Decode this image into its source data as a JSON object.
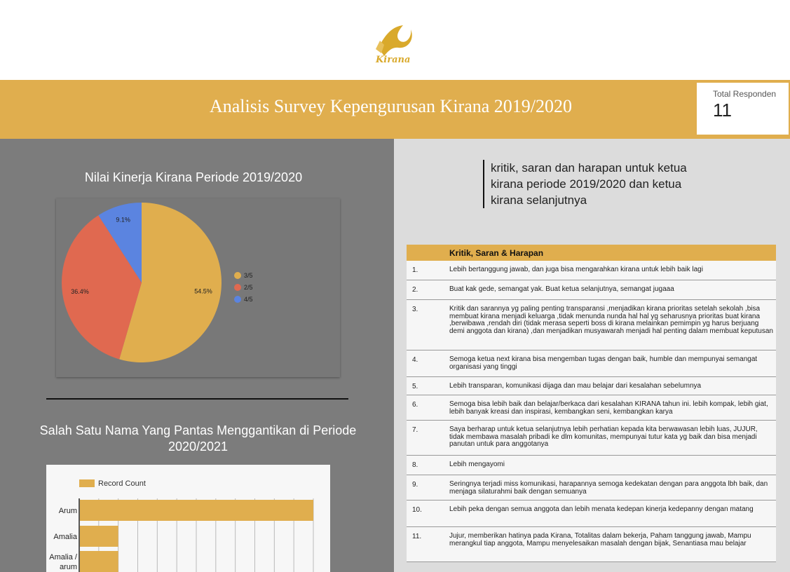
{
  "logo": {
    "text": "Kirana",
    "color": "#d9a92b"
  },
  "header": {
    "title": "Analisis Survey Kepengurusan Kirana 2019/2020",
    "total_label": "Total Responden",
    "total_value": "11",
    "accent": "#e0ae4e"
  },
  "pie_section": {
    "title": "Nilai Kinerja Kirana Periode 2019/2020"
  },
  "bar_section": {
    "title": "Salah Satu Nama Yang Pantas Menggantikan di Periode 2020/2021"
  },
  "question": {
    "text": "kritik, saran dan harapan untuk ketua kirana periode 2019/2020 dan ketua kirana selanjutnya"
  },
  "chart_data": [
    {
      "type": "pie",
      "slices": [
        {
          "label": "3/5",
          "value": 54.5,
          "display": "54.5%",
          "color": "#e0ae4e"
        },
        {
          "label": "2/5",
          "value": 36.4,
          "display": "36.4%",
          "color": "#e06950"
        },
        {
          "label": "4/5",
          "value": 9.1,
          "display": "9.1%",
          "color": "#5b84e0"
        }
      ],
      "legend": "right"
    },
    {
      "type": "bar",
      "orientation": "horizontal",
      "series": [
        {
          "name": "Record Count",
          "color": "#e0ae4e"
        }
      ],
      "categories": [
        "Arum",
        "Amalia",
        "Amalia / arum"
      ],
      "values": [
        6,
        1,
        1
      ],
      "xlim": [
        0,
        6
      ],
      "legend": "top-left",
      "grid": true
    }
  ],
  "table": {
    "header": "Kritik, Saran & Harapan",
    "rows": [
      {
        "num": "1.",
        "text": "Lebih bertanggung jawab, dan juga bisa mengarahkan kirana untuk lebih baik lagi"
      },
      {
        "num": "2.",
        "text": "Buat kak gede, semangat yak. Buat ketua selanjutnya, semangat jugaaa"
      },
      {
        "num": "3.",
        "text": "Kritik dan sarannya yg paling penting transparansi ,menjadikan kirana prioritas setelah sekolah ,bisa membuat kirana menjadi keluarga ,tidak menunda nunda hal hal yg seharusnya prioritas buat kirana ,berwibawa ,rendah diri (tidak merasa seperti boss di kirana melainkan pemimpin yg harus berjuang demi anggota dan kirana) ,dan menjadikan musyawarah menjadi hal penting dalam membuat keputusan"
      },
      {
        "num": "4.",
        "text": "Semoga ketua next kirana bisa mengemban tugas dengan baik, humble dan mempunyai semangat organisasi yang tinggi"
      },
      {
        "num": "5.",
        "text": "Lebih transparan, komunikasi dijaga dan mau belajar dari kesalahan sebelumnya"
      },
      {
        "num": "6.",
        "text": "Semoga bisa lebih baik dan belajar/berkaca dari kesalahan KIRANA tahun ini. lebih kompak, lebih giat, lebih banyak kreasi dan inspirasi, kembangkan seni, kembangkan karya"
      },
      {
        "num": "7.",
        "text": "Saya berharap untuk ketua selanjutnya lebih perhatian kepada kita berwawasan lebih luas, JUJUR, tidak membawa masalah pribadi ke dlm komunitas, mempunyai tutur kata yg baik dan bisa menjadi panutan untuk para anggotanya"
      },
      {
        "num": "8.",
        "text": "Lebih mengayomi"
      },
      {
        "num": "9.",
        "text": "Seringnya terjadi miss komunikasi, harapannya semoga kedekatan dengan para anggota lbh baik, dan menjaga silaturahmi baik dengan semuanya"
      },
      {
        "num": "10.",
        "text": "Lebih peka dengan semua anggota dan lebih menata kedepan kinerja kedepanny dengan matang"
      },
      {
        "num": "11.",
        "text": "Jujur, memberikan hatinya pada Kirana, Totalitas dalam bekerja, Paham tanggung jawab, Mampu merangkul tiap anggota, Mampu menyelesaikan masalah dengan bijak, Senantiasa mau belajar"
      }
    ]
  }
}
